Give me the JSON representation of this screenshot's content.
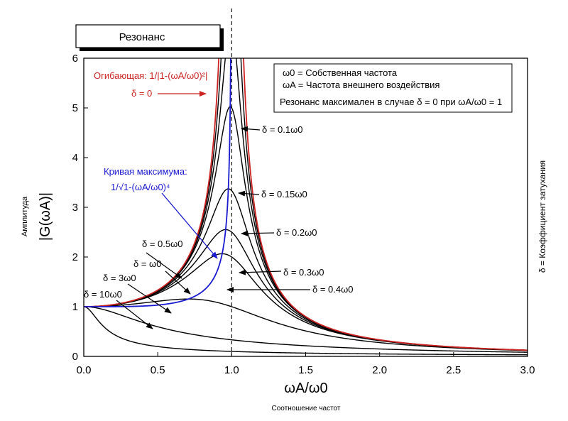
{
  "chart_data": {
    "type": "line",
    "title": "Резонанс",
    "xlabel": "ωA/ω0",
    "xlabel_sub": "Соотношение частот",
    "ylabel": "|G(ωA)|",
    "ylabel_sub": "Амплитуда",
    "right_label": "δ = Коэффициент затухания",
    "xlim": [
      0,
      3
    ],
    "ylim": [
      0,
      6
    ],
    "x_ticks": [
      "0.0",
      "0.5",
      "1.0",
      "1.5",
      "2.0",
      "2.5",
      "3.0"
    ],
    "y_ticks": [
      "0",
      "1",
      "2",
      "3",
      "4",
      "5",
      "6"
    ],
    "legend": {
      "line1": "ω0 = Собственная частота",
      "line2": "ωA = Частота внешнего воздействия",
      "line3": "Резонанс максимален в случае δ = 0 при ωA/ω0 = 1"
    },
    "envelope": {
      "label_line1": "Огибающая: 1/|1-(ωA/ω0)²|",
      "label_line2": "δ = 0",
      "color": "#cc2222"
    },
    "max_curve": {
      "label_line1": "Кривая максимума:",
      "label_line2": "1/√1-(ωA/ω0)⁴",
      "color": "#1a1ad0"
    },
    "series_color": "#000000",
    "dashed_line_x": 1.0,
    "series": [
      {
        "name": "δ = 0.1ω0",
        "delta": 0.1,
        "peak": 5.0
      },
      {
        "name": "δ = 0.15ω0",
        "delta": 0.15,
        "peak": 3.35
      },
      {
        "name": "δ = 0.2ω0",
        "delta": 0.2,
        "peak": 2.55
      },
      {
        "name": "δ = 0.3ω0",
        "delta": 0.3,
        "peak": 1.75
      },
      {
        "name": "δ = 0.4ω0",
        "delta": 0.4,
        "peak": 1.39
      },
      {
        "name": "δ = 0.5ω0",
        "delta": 0.5,
        "peak": 1.16
      },
      {
        "name": "δ = ω0",
        "delta": 1,
        "peak": 1.0
      },
      {
        "name": "δ = 3ω0",
        "delta": 3,
        "peak": 1.0
      },
      {
        "name": "δ = 10ω0",
        "delta": 10,
        "peak": 1.0
      }
    ]
  }
}
